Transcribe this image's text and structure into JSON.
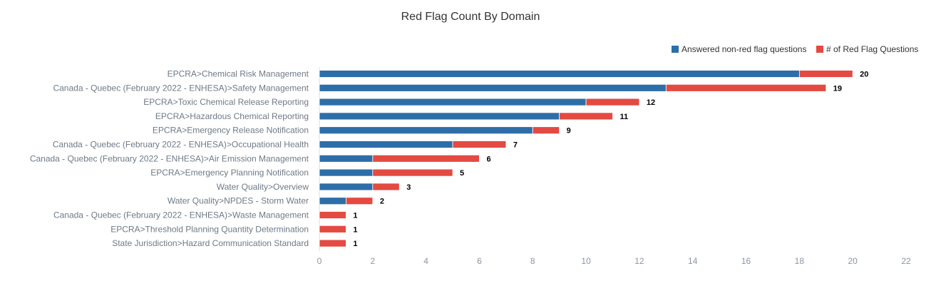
{
  "chart_data": {
    "type": "bar",
    "orientation": "horizontal",
    "stacked": true,
    "title": "Red Flag Count By Domain",
    "xlim": [
      0,
      22
    ],
    "x_ticks": [
      0,
      2,
      4,
      6,
      8,
      10,
      12,
      14,
      16,
      18,
      20,
      22
    ],
    "grid": false,
    "legend_position": "top-right",
    "categories": [
      "EPCRA>Chemical Risk Management",
      "Canada - Quebec (February 2022 - ENHESA)>Safety Management",
      "EPCRA>Toxic Chemical Release Reporting",
      "EPCRA>Hazardous Chemical Reporting",
      "EPCRA>Emergency Release Notification",
      "Canada - Quebec (February 2022 - ENHESA)>Occupational Health",
      "Canada - Quebec (February 2022 - ENHESA)>Air Emission Management",
      "EPCRA>Emergency Planning Notification",
      "Water Quality>Overview",
      "Water Quality>NPDES - Storm Water",
      "Canada - Quebec (February 2022 - ENHESA)>Waste Management",
      "EPCRA>Threshold Planning Quantity Determination",
      "State Jurisdiction>Hazard Communication Standard"
    ],
    "series": [
      {
        "name": "Answered non-red flag questions",
        "color": "#2e6ea8",
        "values": [
          18,
          13,
          10,
          9,
          8,
          5,
          2,
          2,
          2,
          1,
          0,
          0,
          0
        ]
      },
      {
        "name": "# of Red Flag Questions",
        "color": "#e34a42",
        "values": [
          2,
          6,
          2,
          2,
          1,
          2,
          4,
          3,
          1,
          1,
          1,
          1,
          1
        ]
      }
    ],
    "totals": [
      20,
      19,
      12,
      11,
      9,
      7,
      6,
      5,
      3,
      2,
      1,
      1,
      1
    ]
  }
}
